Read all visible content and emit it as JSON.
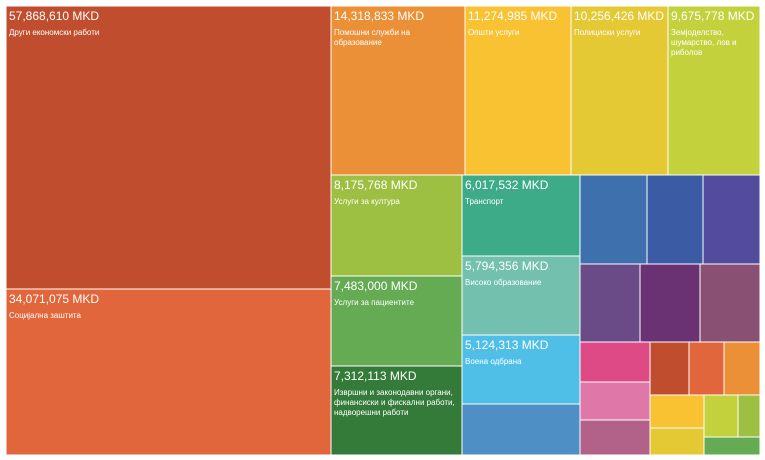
{
  "chart_data": {
    "type": "treemap",
    "unit": "MKD",
    "items": [
      {
        "value": "57,868,610 MKD",
        "label": "Други економски работи",
        "amount": 57868610,
        "color": "#c04e2e"
      },
      {
        "value": "34,071,075 MKD",
        "label": "Социјална заштита",
        "amount": 34071075,
        "color": "#e2663b"
      },
      {
        "value": "14,318,833 MKD",
        "label": "Помошни служби на образование",
        "amount": 14318833,
        "color": "#eb9036"
      },
      {
        "value": "11,274,985 MKD",
        "label": "Општи услуги",
        "amount": 11274985,
        "color": "#f8c232"
      },
      {
        "value": "10,256,426 MKD",
        "label": "Полициски услуги",
        "amount": 10256426,
        "color": "#e4c834"
      },
      {
        "value": "9,675,778 MKD",
        "label": "Земјоделство, шумарство, лов и риболов",
        "amount": 9675778,
        "color": "#c3d13d"
      },
      {
        "value": "8,175,768 MKD",
        "label": "Услуги за култура",
        "amount": 8175768,
        "color": "#9dbf42"
      },
      {
        "value": "7,483,000 MKD",
        "label": "Услуги за пациентите",
        "amount": 7483000,
        "color": "#65ab53"
      },
      {
        "value": "7,312,113 MKD",
        "label": "Извршни и законодавни органи, финансиски и фискални работи, надворешни работи",
        "amount": 7312113,
        "color": "#347a39"
      },
      {
        "value": "6,017,532 MKD",
        "label": "Транспорт",
        "amount": 6017532,
        "color": "#3eab88"
      },
      {
        "value": "5,794,356 MKD",
        "label": "Високо образование",
        "amount": 5794356,
        "color": "#73c0ae"
      },
      {
        "value": "5,124,313 MKD",
        "label": "Воена одбрана",
        "amount": 5124313,
        "color": "#50bfe8"
      },
      {
        "color": "#4e8fc6"
      },
      {
        "color": "#3e70ae"
      },
      {
        "color": "#3b5ba4"
      },
      {
        "color": "#524b9e"
      },
      {
        "color": "#6a4a87"
      },
      {
        "color": "#6a3272"
      },
      {
        "color": "#895073"
      },
      {
        "color": "#de4a85"
      },
      {
        "color": "#df77a8"
      },
      {
        "color": "#b26189"
      },
      {
        "color": "#c04e2e"
      },
      {
        "color": "#e2663b"
      },
      {
        "color": "#eb9036"
      },
      {
        "color": "#f8c232"
      },
      {
        "color": "#e4c834"
      },
      {
        "color": "#c3d13d"
      },
      {
        "color": "#9dbf42"
      },
      {
        "color": "#65ab53"
      }
    ]
  }
}
